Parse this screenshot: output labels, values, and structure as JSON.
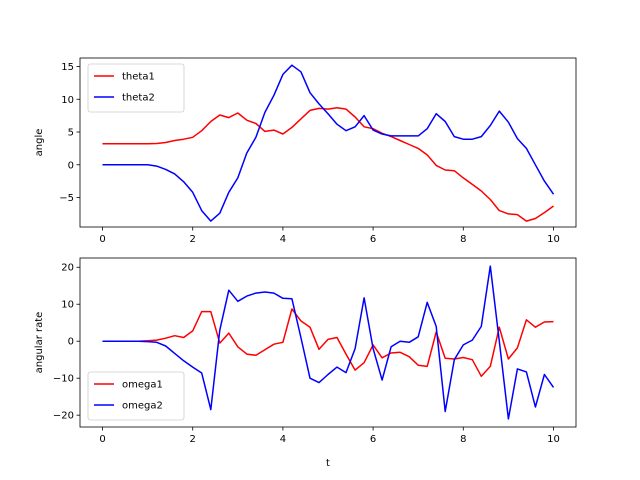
{
  "chart_data": [
    {
      "type": "line",
      "title": "",
      "xlabel": "",
      "ylabel": "angle",
      "xlim": [
        -0.5,
        10.5
      ],
      "ylim": [
        -9.5,
        16.3
      ],
      "xticks": [
        0,
        2,
        4,
        6,
        8,
        10
      ],
      "xtick_labels": [
        "0",
        "2",
        "4",
        "6",
        "8",
        "10"
      ],
      "yticks": [
        -5,
        0,
        5,
        10,
        15
      ],
      "ytick_labels": [
        "−5",
        "0",
        "5",
        "10",
        "15"
      ],
      "grid": false,
      "legend": "upper-left",
      "x": [
        0,
        0.2,
        0.4,
        0.6,
        0.8,
        1.0,
        1.2,
        1.4,
        1.6,
        1.8,
        2.0,
        2.2,
        2.4,
        2.6,
        2.8,
        3.0,
        3.2,
        3.4,
        3.6,
        3.8,
        4.0,
        4.2,
        4.4,
        4.6,
        4.8,
        5.0,
        5.2,
        5.4,
        5.6,
        5.8,
        6.0,
        6.2,
        6.4,
        6.6,
        6.8,
        7.0,
        7.2,
        7.4,
        7.6,
        7.8,
        8.0,
        8.2,
        8.4,
        8.6,
        8.8,
        9.0,
        9.2,
        9.4,
        9.6,
        9.8,
        10.0
      ],
      "series": [
        {
          "name": "theta1",
          "color": "#ff0000",
          "values": [
            3.2,
            3.2,
            3.2,
            3.2,
            3.2,
            3.2,
            3.25,
            3.4,
            3.7,
            3.9,
            4.2,
            5.2,
            6.6,
            7.6,
            7.2,
            7.9,
            6.8,
            6.3,
            5.1,
            5.3,
            4.7,
            5.7,
            7.0,
            8.3,
            8.6,
            8.5,
            8.7,
            8.5,
            7.3,
            5.8,
            5.5,
            4.8,
            4.3,
            3.7,
            3.1,
            2.5,
            1.5,
            -0.1,
            -0.8,
            -0.9,
            -2.0,
            -3.0,
            -4.0,
            -5.3,
            -7.0,
            -7.5,
            -7.6,
            -8.6,
            -8.2,
            -7.3,
            -6.3
          ]
        },
        {
          "name": "theta2",
          "color": "#0000ff",
          "values": [
            0,
            0,
            0,
            0,
            0,
            0,
            -0.2,
            -0.7,
            -1.4,
            -2.6,
            -4.2,
            -7.0,
            -8.6,
            -7.4,
            -4.2,
            -2.0,
            1.8,
            4.2,
            8.0,
            10.6,
            13.8,
            15.2,
            14.2,
            11.0,
            9.3,
            7.8,
            6.2,
            5.2,
            5.8,
            7.5,
            5.3,
            4.7,
            4.4,
            4.4,
            4.4,
            4.4,
            5.5,
            7.8,
            6.6,
            4.3,
            3.9,
            3.9,
            4.3,
            6.0,
            8.2,
            6.5,
            4.0,
            2.5,
            0.0,
            -2.5,
            -4.5
          ]
        }
      ]
    },
    {
      "type": "line",
      "title": "",
      "xlabel": "t",
      "ylabel": "angular rate",
      "xlim": [
        -0.5,
        10.5
      ],
      "ylim": [
        -23.2,
        22.5
      ],
      "xticks": [
        0,
        2,
        4,
        6,
        8,
        10
      ],
      "xtick_labels": [
        "0",
        "2",
        "4",
        "6",
        "8",
        "10"
      ],
      "yticks": [
        -20,
        -10,
        0,
        10,
        20
      ],
      "ytick_labels": [
        "−20",
        "−10",
        "0",
        "10",
        "20"
      ],
      "grid": false,
      "legend": "lower-left",
      "x": [
        0,
        0.2,
        0.4,
        0.6,
        0.8,
        1.0,
        1.2,
        1.4,
        1.6,
        1.8,
        2.0,
        2.2,
        2.4,
        2.6,
        2.8,
        3.0,
        3.2,
        3.4,
        3.6,
        3.8,
        4.0,
        4.2,
        4.4,
        4.6,
        4.8,
        5.0,
        5.2,
        5.4,
        5.6,
        5.8,
        6.0,
        6.2,
        6.4,
        6.6,
        6.8,
        7.0,
        7.2,
        7.4,
        7.6,
        7.8,
        8.0,
        8.2,
        8.4,
        8.6,
        8.8,
        9.0,
        9.2,
        9.4,
        9.6,
        9.8,
        10.0
      ],
      "series": [
        {
          "name": "omega1",
          "color": "#ff0000",
          "values": [
            0,
            0,
            0,
            0,
            0,
            0.1,
            0.3,
            0.8,
            1.5,
            1.0,
            2.8,
            8.0,
            8.0,
            -0.5,
            2.2,
            -1.5,
            -3.5,
            -3.8,
            -2.3,
            -0.8,
            -0.3,
            8.7,
            5.5,
            3.8,
            -2.2,
            0.5,
            1.0,
            -3.5,
            -7.8,
            -5.8,
            -1.0,
            -4.5,
            -3.2,
            -3.0,
            -4.2,
            -6.5,
            -6.8,
            2.5,
            -4.6,
            -4.8,
            -4.4,
            -5.0,
            -9.5,
            -6.8,
            3.8,
            -4.8,
            -1.8,
            5.8,
            3.8,
            5.2,
            5.3
          ]
        },
        {
          "name": "omega2",
          "color": "#0000ff",
          "values": [
            0,
            0,
            0,
            0,
            0,
            -0.1,
            -0.3,
            -1.3,
            -3.3,
            -5.3,
            -7.0,
            -8.6,
            -18.5,
            3.0,
            13.8,
            10.8,
            12.2,
            13.0,
            13.3,
            13.0,
            11.6,
            11.5,
            1.0,
            -10.0,
            -11.2,
            -9.0,
            -7.0,
            -8.5,
            -2.0,
            11.7,
            -2.0,
            -10.5,
            -1.5,
            0.0,
            -0.3,
            1.2,
            10.5,
            4.0,
            -19.0,
            -5.0,
            -1.0,
            0.3,
            4.0,
            20.3,
            0.0,
            -21.0,
            -7.5,
            -8.3,
            -17.8,
            -9.0,
            -12.5
          ]
        }
      ]
    }
  ]
}
